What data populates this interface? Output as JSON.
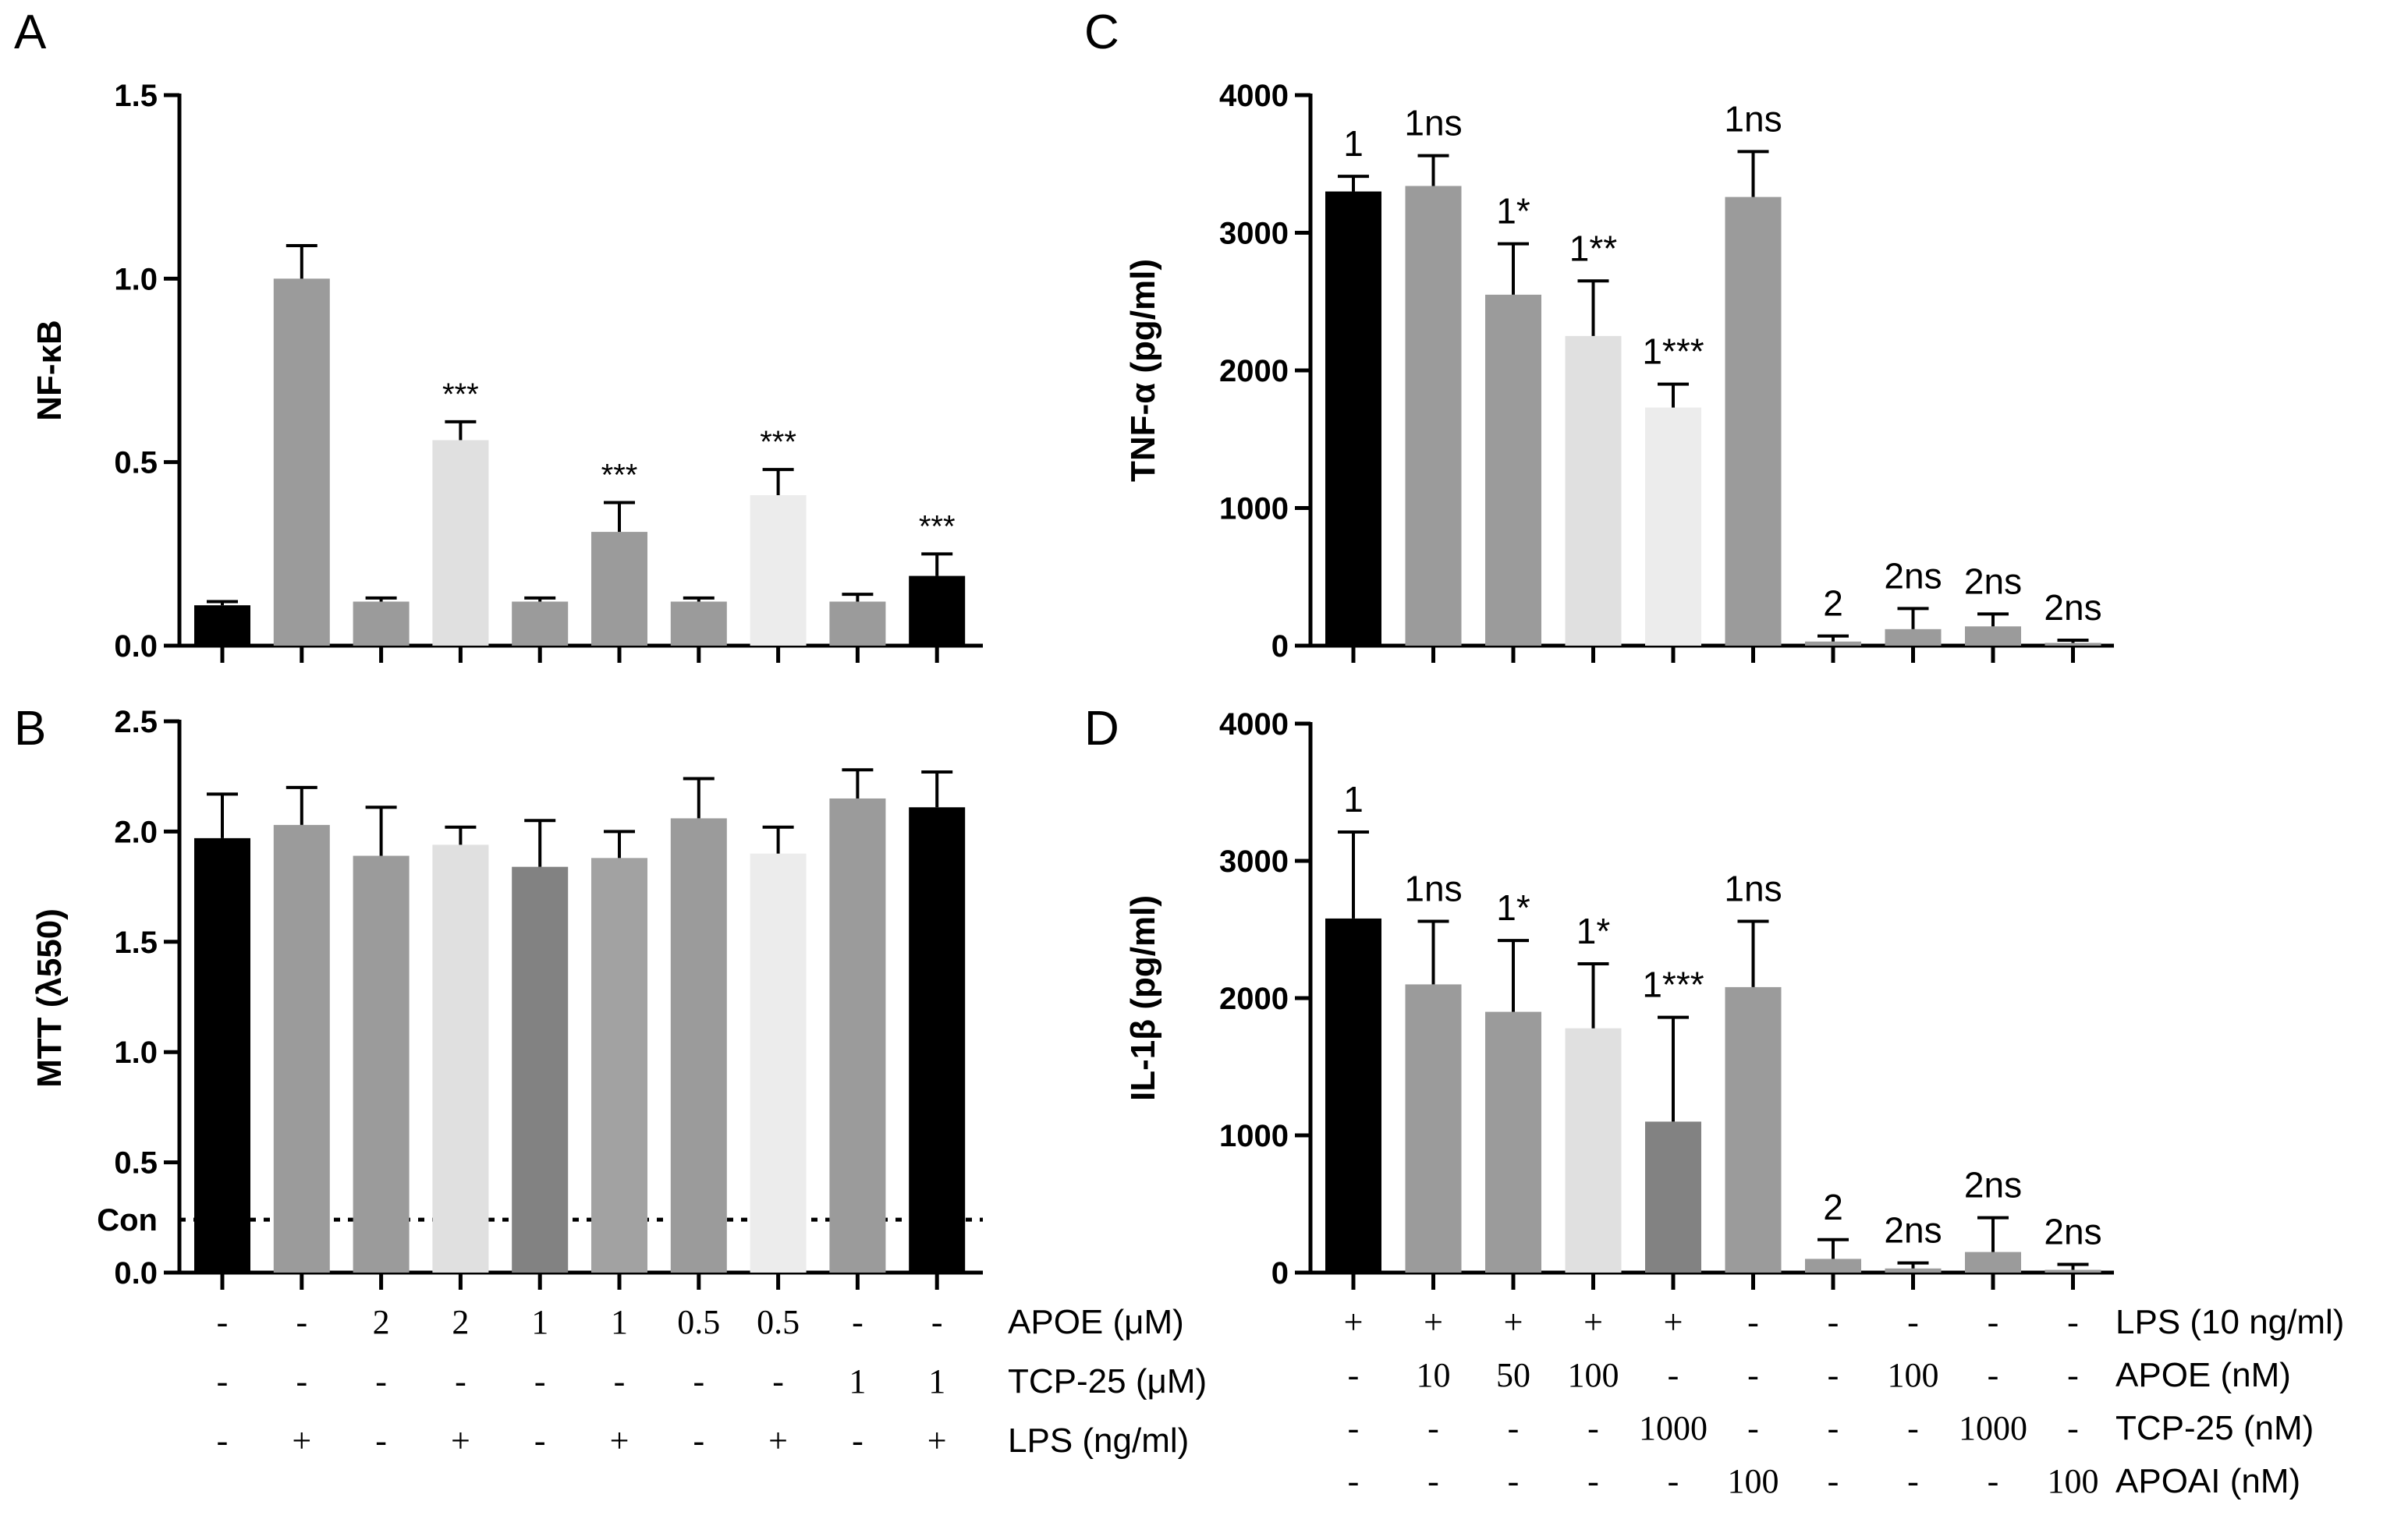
{
  "chart_data": [
    {
      "panel": "A",
      "type": "bar",
      "ylabel": "NF-κB",
      "ylim": [
        0,
        1.5
      ],
      "yticks": [
        "0.0",
        "0.5",
        "1.0",
        "1.5"
      ],
      "ytick_values": [
        0,
        0.5,
        1.0,
        1.5
      ],
      "values": [
        0.11,
        1.0,
        0.12,
        0.56,
        0.12,
        0.31,
        0.12,
        0.41,
        0.12,
        0.19
      ],
      "errors": [
        0.01,
        0.09,
        0.01,
        0.05,
        0.01,
        0.08,
        0.01,
        0.07,
        0.02,
        0.06
      ],
      "colors": [
        "#000000",
        "#9b9b9b",
        "#9b9b9b",
        "#e0e0e0",
        "#9b9b9b",
        "#9b9b9b",
        "#9b9b9b",
        "#ececec",
        "#9b9b9b",
        "#000000"
      ],
      "annotations": [
        "",
        "",
        "",
        "***",
        "",
        "***",
        "",
        "***",
        "",
        "***"
      ]
    },
    {
      "panel": "B",
      "type": "bar",
      "ylabel": "MTT (λ550)",
      "ylim": [
        0,
        2.5
      ],
      "yticks": [
        "0.0",
        "0.5",
        "1.0",
        "1.5",
        "2.0",
        "2.5"
      ],
      "ytick_values": [
        0,
        0.5,
        1.0,
        1.5,
        2.0,
        2.5
      ],
      "reference_label": "Con",
      "reference_value": 0.24,
      "values": [
        1.97,
        2.03,
        1.89,
        1.94,
        1.84,
        1.88,
        2.06,
        1.9,
        2.15,
        2.11
      ],
      "errors": [
        0.2,
        0.17,
        0.22,
        0.08,
        0.21,
        0.12,
        0.18,
        0.12,
        0.13,
        0.16
      ],
      "colors": [
        "#000000",
        "#9b9b9b",
        "#9b9b9b",
        "#e0e0e0",
        "#828282",
        "#a2a2a2",
        "#9b9b9b",
        "#ececec",
        "#9b9b9b",
        "#000000"
      ],
      "conditions": [
        {
          "name": "APOE (μM)",
          "values": [
            "-",
            "-",
            "2",
            "2",
            "1",
            "1",
            "0.5",
            "0.5",
            "-",
            "-"
          ]
        },
        {
          "name": "TCP-25 (μM)",
          "values": [
            "-",
            "-",
            "-",
            "-",
            "-",
            "-",
            "-",
            "-",
            "1",
            "1"
          ]
        },
        {
          "name": "LPS (ng/ml)",
          "values": [
            "-",
            "+",
            "-",
            "+",
            "-",
            "+",
            "-",
            "+",
            "-",
            "+"
          ]
        }
      ]
    },
    {
      "panel": "C",
      "type": "bar",
      "ylabel": "TNF-α (pg/ml)",
      "ylim": [
        0,
        4000
      ],
      "yticks": [
        "0",
        "1000",
        "2000",
        "3000",
        "4000"
      ],
      "ytick_values": [
        0,
        1000,
        2000,
        3000,
        4000
      ],
      "values": [
        3300,
        3340,
        2550,
        2250,
        1730,
        3260,
        30,
        120,
        140,
        20
      ],
      "errors": [
        110,
        220,
        370,
        400,
        170,
        330,
        40,
        150,
        90,
        20
      ],
      "colors": [
        "#000000",
        "#9b9b9b",
        "#9b9b9b",
        "#e0e0e0",
        "#ececec",
        "#9b9b9b",
        "#9b9b9b",
        "#9b9b9b",
        "#9b9b9b",
        "#9b9b9b"
      ],
      "annotations": [
        "1",
        "1ns",
        "1*",
        "1**",
        "1***",
        "1ns",
        "2",
        "2ns",
        "2ns",
        "2ns"
      ]
    },
    {
      "panel": "D",
      "type": "bar",
      "ylabel": "IL-1β (pg/ml)",
      "ylim": [
        0,
        4000
      ],
      "yticks": [
        "0",
        "1000",
        "2000",
        "3000",
        "4000"
      ],
      "ytick_values": [
        0,
        1000,
        2000,
        3000,
        4000
      ],
      "values": [
        2580,
        2100,
        1900,
        1780,
        1100,
        2080,
        100,
        30,
        150,
        20
      ],
      "errors": [
        630,
        460,
        520,
        470,
        760,
        480,
        140,
        40,
        250,
        40
      ],
      "colors": [
        "#000000",
        "#9b9b9b",
        "#9b9b9b",
        "#e0e0e0",
        "#828282",
        "#9b9b9b",
        "#9b9b9b",
        "#9b9b9b",
        "#9b9b9b",
        "#9b9b9b"
      ],
      "annotations": [
        "1",
        "1ns",
        "1*",
        "1*",
        "1***",
        "1ns",
        "2",
        "2ns",
        "2ns",
        "2ns"
      ],
      "conditions": [
        {
          "name": "LPS (10 ng/ml)",
          "values": [
            "+",
            "+",
            "+",
            "+",
            "+",
            "-",
            "-",
            "-",
            "-",
            "-"
          ]
        },
        {
          "name": "APOE (nM)",
          "values": [
            "-",
            "10",
            "50",
            "100",
            "-",
            "-",
            "-",
            "100",
            "-",
            "-"
          ]
        },
        {
          "name": "TCP-25 (nM)",
          "values": [
            "-",
            "-",
            "-",
            "-",
            "1000",
            "-",
            "-",
            "-",
            "1000",
            "-"
          ]
        },
        {
          "name": "APOAI (nM)",
          "values": [
            "-",
            "-",
            "-",
            "-",
            "-",
            "100",
            "-",
            "-",
            "-",
            "100"
          ]
        }
      ]
    }
  ]
}
